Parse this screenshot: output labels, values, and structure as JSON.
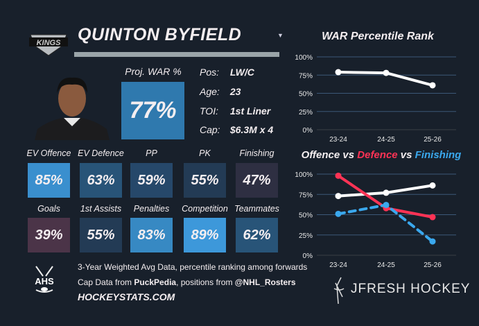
{
  "player": {
    "name": "QUINTON BYFIELD",
    "team_logo_text": "KINGS"
  },
  "proj_war": {
    "label": "Proj. WAR %",
    "value": "77%",
    "color": "#2f79ae"
  },
  "info": [
    {
      "key": "Pos:",
      "value": "LW/C"
    },
    {
      "key": "Age:",
      "value": "23"
    },
    {
      "key": "TOI:",
      "value": "1st Liner"
    },
    {
      "key": "Cap:",
      "value": "$6.3M x 4"
    }
  ],
  "tiles": [
    {
      "label": "EV Offence",
      "value": "85%",
      "color": "#3a8fce"
    },
    {
      "label": "EV Defence",
      "value": "63%",
      "color": "#285478"
    },
    {
      "label": "PP",
      "value": "59%",
      "color": "#26486a"
    },
    {
      "label": "PK",
      "value": "55%",
      "color": "#233b55"
    },
    {
      "label": "Finishing",
      "value": "47%",
      "color": "#2e2f42"
    },
    {
      "label": "Goals",
      "value": "39%",
      "color": "#4b3448"
    },
    {
      "label": "1st Assists",
      "value": "55%",
      "color": "#233b55"
    },
    {
      "label": "Penalties",
      "value": "83%",
      "color": "#3789c3"
    },
    {
      "label": "Competition",
      "value": "89%",
      "color": "#3d98da"
    },
    {
      "label": "Teammates",
      "value": "62%",
      "color": "#285478"
    }
  ],
  "footer": {
    "line1": "3-Year Weighted Avg Data, percentile ranking among forwards",
    "line2_prefix": "Cap Data from ",
    "line2_bold1": "PuckPedia",
    "line2_mid": ", positions from ",
    "line2_bold2": "@NHL_Rosters",
    "site": "HOCKEYSTATS.COM",
    "ahs_logo": "AHS",
    "brand": "JFRESH HOCKEY"
  },
  "chart_data": [
    {
      "type": "line",
      "title": "WAR Percentile Rank",
      "x": [
        "23-24",
        "24-25",
        "25-26"
      ],
      "yticks": [
        "100%",
        "75%",
        "50%",
        "25%",
        "0%"
      ],
      "ylim": [
        0,
        100
      ],
      "series": [
        {
          "name": "WAR",
          "values": [
            79,
            78,
            61
          ],
          "color": "#ffffff"
        }
      ]
    },
    {
      "type": "line",
      "title_parts": [
        {
          "text": "Offence",
          "color": "#f4eef0"
        },
        {
          "text": " vs ",
          "color": "#f4eef0"
        },
        {
          "text": "Defence",
          "color": "#ff3355"
        },
        {
          "text": " vs ",
          "color": "#f4eef0"
        },
        {
          "text": "Finishing",
          "color": "#3aa8ee"
        }
      ],
      "x": [
        "23-24",
        "24-25",
        "25-26"
      ],
      "yticks": [
        "100%",
        "75%",
        "50%",
        "25%",
        "0%"
      ],
      "ylim": [
        0,
        100
      ],
      "series": [
        {
          "name": "Offence",
          "values": [
            73,
            77,
            86
          ],
          "color": "#ffffff",
          "dashed": false
        },
        {
          "name": "Defence",
          "values": [
            98,
            58,
            47
          ],
          "color": "#ff3355",
          "dashed": false
        },
        {
          "name": "Finishing",
          "values": [
            51,
            62,
            17
          ],
          "color": "#3aa8ee",
          "dashed": true
        }
      ]
    }
  ]
}
